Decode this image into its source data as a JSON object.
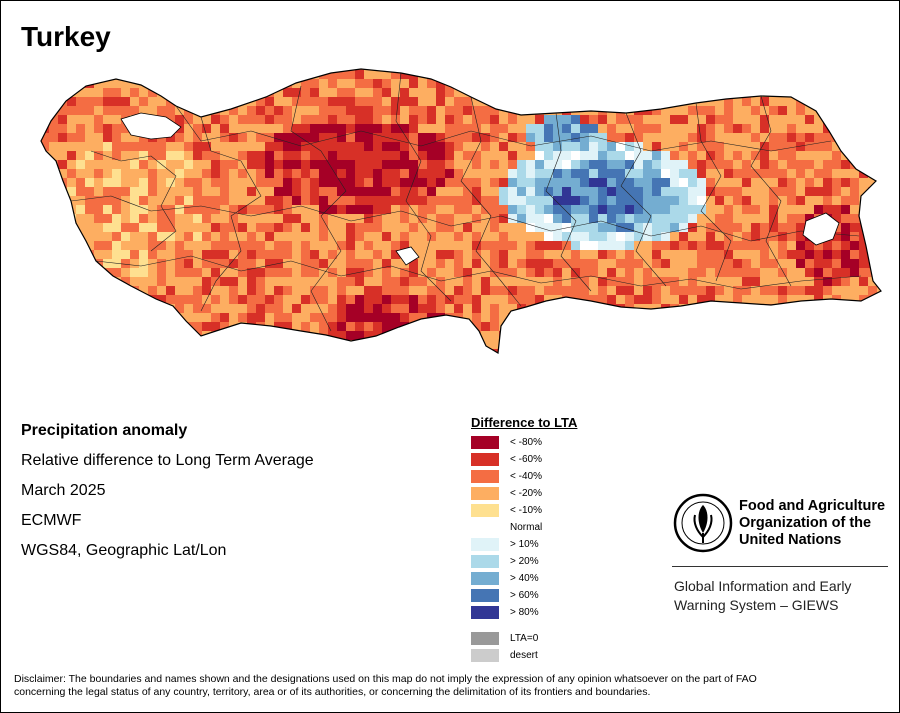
{
  "map": {
    "title": "Turkey",
    "info_lines": {
      "title": "Precipitation anomaly",
      "subtitle": "Relative difference to Long Term Average",
      "date": "March 2025",
      "source": "ECMWF",
      "projection": "WGS84, Geographic Lat/Lon"
    }
  },
  "legend": {
    "title": "Difference to LTA",
    "classes": [
      {
        "label": "< -80%",
        "color": "#a50026"
      },
      {
        "label": "< -60%",
        "color": "#d73027"
      },
      {
        "label": "< -40%",
        "color": "#f46d43"
      },
      {
        "label": "< -20%",
        "color": "#fdae61"
      },
      {
        "label": "< -10%",
        "color": "#fee090"
      },
      {
        "label": "Normal",
        "color": "#ffffff"
      },
      {
        "label": "> 10%",
        "color": "#e0f3f8"
      },
      {
        "label": "> 20%",
        "color": "#abd9e9"
      },
      {
        "label": "> 40%",
        "color": "#74add1"
      },
      {
        "label": "> 60%",
        "color": "#4575b4"
      },
      {
        "label": "> 80%",
        "color": "#313695"
      }
    ],
    "extra": [
      {
        "label": "LTA=0",
        "color": "#999999"
      },
      {
        "label": "desert",
        "color": "#cccccc"
      }
    ]
  },
  "fao": {
    "logo_top": "FAO",
    "logo_motto": "FIAT PANIS",
    "name_lines": [
      "Food and Agriculture",
      "Organization of the",
      "United Nations"
    ],
    "giews_lines": [
      "Global Information and Early",
      "Warning System – GIEWS"
    ]
  },
  "disclaimer": {
    "line1": "Disclaimer: The boundaries and names shown and the designations used on this map do not imply the expression of any opinion whatsoever on the part of FAO",
    "line2": "concerning the legal status of any country, territory, area or of its authorities, or concerning the delimitation of its frontiers and boundaries."
  }
}
